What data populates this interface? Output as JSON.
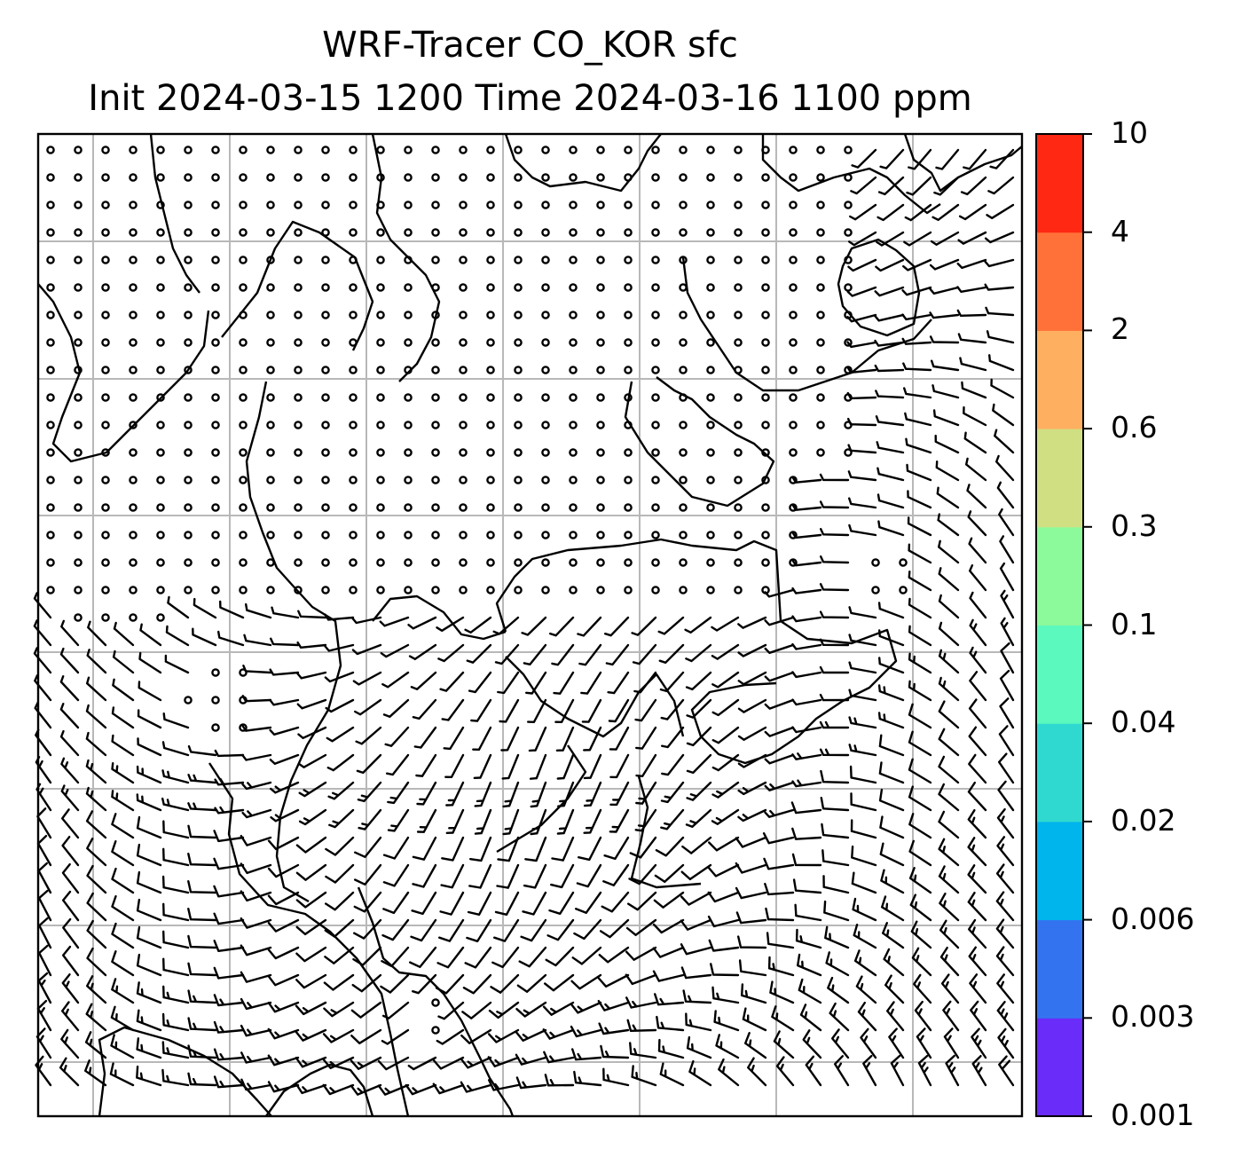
{
  "title": {
    "line1": "WRF-Tracer CO_KOR sfc",
    "line2": "Init 2024-03-15 1200 Time 2024-03-16 1100 ppm"
  },
  "colorbar": {
    "levels": [
      "0.001",
      "0.003",
      "0.006",
      "0.02",
      "0.04",
      "0.1",
      "0.3",
      "0.6",
      "2",
      "4",
      "10"
    ],
    "colors": [
      "#6a2cf9",
      "#3473f0",
      "#00b4ec",
      "#2fd9d0",
      "#5cf9be",
      "#8cf99b",
      "#cfdf82",
      "#feaf60",
      "#ff7138",
      "#ff2813"
    ]
  },
  "map": {
    "grid": "on",
    "layers": [
      "wind-barbs",
      "coastlines"
    ],
    "barb_color": "#000000",
    "coastline_color": "#000000"
  }
}
